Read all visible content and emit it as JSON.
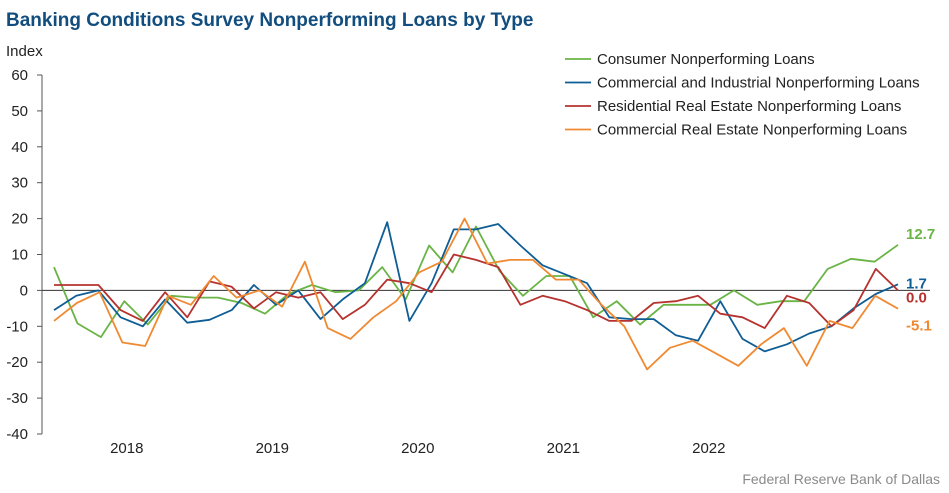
{
  "chart_data": {
    "type": "line",
    "title": "Banking Conditions Survey Nonperforming Loans by Type",
    "ylabel": "Index",
    "ylim": [
      -40,
      60
    ],
    "yticks": [
      60,
      50,
      40,
      30,
      20,
      10,
      0,
      -10,
      -20,
      -30,
      -40
    ],
    "xlim": [
      0,
      29
    ],
    "x_tick_labels": [
      {
        "label": "2018",
        "at": 2.5
      },
      {
        "label": "2019",
        "at": 7.5
      },
      {
        "label": "2020",
        "at": 12.5
      },
      {
        "label": "2021",
        "at": 17.5
      },
      {
        "label": "2022",
        "at": 22.5
      }
    ],
    "grid": false,
    "legend_position": "top-right",
    "source": "Federal Reserve Bank of Dallas",
    "series": [
      {
        "name": "Consumer Nonperforming Loans",
        "color": "#6ab446",
        "end_label": "12.7",
        "values": [
          6.5,
          -9.2,
          -13,
          -3,
          -9.5,
          -1.5,
          -2,
          -2,
          -3.5,
          -6.5,
          -1,
          1.5,
          -0.5,
          0,
          6.5,
          -2.5,
          12.5,
          5,
          17.8,
          5.5,
          -1.5,
          4,
          4,
          -7.5,
          -3,
          -9.5,
          -4,
          -4,
          -4,
          0,
          -4,
          -3,
          -3,
          6,
          8.8,
          8,
          12.7
        ]
      },
      {
        "name": "Commercial and Industrial Nonperforming Loans",
        "color": "#0e5d95",
        "end_label": "1.7",
        "values": [
          -5.5,
          -1.5,
          0,
          -7.5,
          -10,
          -2.5,
          -9,
          -8.2,
          -5.5,
          1.5,
          -4,
          0,
          -8,
          -2.5,
          2,
          19,
          -8.5,
          2,
          17,
          17,
          18.5,
          12.5,
          7,
          4.5,
          2,
          -7.5,
          -8,
          -8,
          -12.5,
          -14,
          -3,
          -13.5,
          -17,
          -15,
          -12,
          -10,
          -5,
          -1,
          1.7
        ]
      },
      {
        "name": "Residential Real Estate Nonperforming Loans",
        "color": "#b5322e",
        "end_label": "0.0",
        "values": [
          1.5,
          1.5,
          1.5,
          -5.5,
          -8.5,
          -0.5,
          -7.5,
          2.5,
          1,
          -5,
          -0.5,
          -2,
          -0.5,
          -8,
          -4,
          3,
          2,
          -0.5,
          10,
          8.5,
          6.5,
          -4,
          -1.5,
          -3,
          -5.5,
          -8.5,
          -8.5,
          -3.5,
          -3,
          -1.5,
          -6.5,
          -7.5,
          -10.5,
          -1.5,
          -3.5,
          -10,
          -5.5,
          6,
          0.0
        ]
      },
      {
        "name": "Commercial Real Estate Nonperforming Loans",
        "color": "#f08a32",
        "end_label": "-5.1",
        "values": [
          -8.5,
          -3.5,
          -0.5,
          -14.5,
          -15.5,
          -1.5,
          -4,
          4,
          -2,
          0,
          -4.5,
          8,
          -10.5,
          -13.5,
          -7.5,
          -3,
          5,
          8,
          20,
          7.5,
          8.5,
          8.5,
          3,
          3,
          -4,
          -10,
          -22,
          -16,
          -14,
          -17.5,
          -21,
          -15,
          -10.5,
          -21,
          -8.5,
          -10.5,
          -1.5,
          -5.1
        ]
      }
    ]
  }
}
